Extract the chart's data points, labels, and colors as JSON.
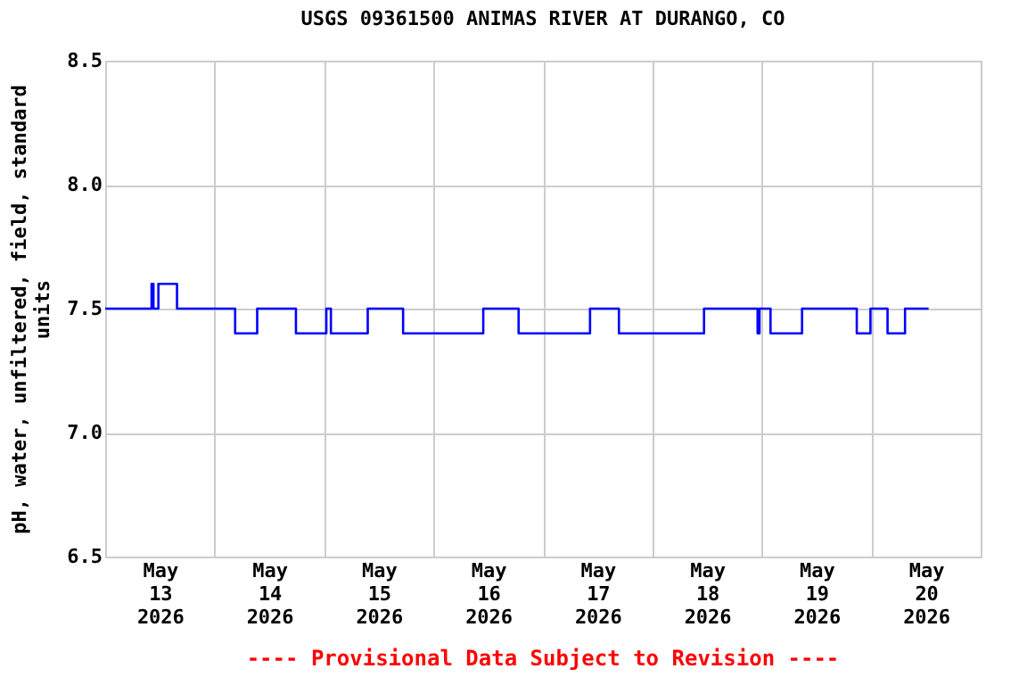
{
  "chart_data": {
    "type": "step",
    "title": "USGS 09361500 ANIMAS RIVER AT DURANGO, CO",
    "ylabel": "pH, water, unfiltered, field, standard units",
    "annotations": [
      "---- Provisional Data Subject to Revision ----"
    ],
    "x": [
      "2026-05-13T00:00",
      "2026-05-13T10:10",
      "2026-05-13T10:35",
      "2026-05-13T11:40",
      "2026-05-13T15:45",
      "2026-05-14T04:30",
      "2026-05-14T09:20",
      "2026-05-14T17:50",
      "2026-05-15T00:30",
      "2026-05-15T01:30",
      "2026-05-15T09:35",
      "2026-05-15T17:20",
      "2026-05-16T10:55",
      "2026-05-16T18:40",
      "2026-05-17T10:20",
      "2026-05-17T16:40",
      "2026-05-18T11:20",
      "2026-05-18T23:05",
      "2026-05-18T23:30",
      "2026-05-19T01:55",
      "2026-05-19T08:50",
      "2026-05-19T20:50",
      "2026-05-19T23:50",
      "2026-05-20T03:35",
      "2026-05-20T07:25",
      "2026-05-20T12:35"
    ],
    "series": [
      {
        "color": "#0000ff",
        "values": [
          7.5,
          7.6,
          7.5,
          7.6,
          7.5,
          7.4,
          7.5,
          7.4,
          7.5,
          7.4,
          7.5,
          7.4,
          7.5,
          7.4,
          7.5,
          7.4,
          7.5,
          7.4,
          7.5,
          7.4,
          7.5,
          7.4,
          7.5,
          7.4,
          7.5,
          7.5
        ]
      }
    ],
    "xlim": [
      "2026-05-13T00:00",
      "2026-05-21T00:00"
    ],
    "xticks": [
      {
        "value": "2026-05-13T00:00",
        "label": null
      },
      {
        "value": "2026-05-13T12:00",
        "label": "May\n13\n2026"
      },
      {
        "value": "2026-05-14T00:00",
        "label": null
      },
      {
        "value": "2026-05-14T12:00",
        "label": "May\n14\n2026"
      },
      {
        "value": "2026-05-15T00:00",
        "label": null
      },
      {
        "value": "2026-05-15T12:00",
        "label": "May\n15\n2026"
      },
      {
        "value": "2026-05-16T00:00",
        "label": null
      },
      {
        "value": "2026-05-16T12:00",
        "label": "May\n16\n2026"
      },
      {
        "value": "2026-05-17T00:00",
        "label": null
      },
      {
        "value": "2026-05-17T12:00",
        "label": "May\n17\n2026"
      },
      {
        "value": "2026-05-18T00:00",
        "label": null
      },
      {
        "value": "2026-05-18T12:00",
        "label": "May\n18\n2026"
      },
      {
        "value": "2026-05-19T00:00",
        "label": null
      },
      {
        "value": "2026-05-19T12:00",
        "label": "May\n19\n2026"
      },
      {
        "value": "2026-05-20T00:00",
        "label": null
      },
      {
        "value": "2026-05-20T12:00",
        "label": "May\n20\n2026"
      },
      {
        "value": "2026-05-21T00:00",
        "label": null
      }
    ],
    "ylim": [
      6.5,
      8.5
    ],
    "yticks": [
      {
        "value": 6.5,
        "label": "6.5"
      },
      {
        "value": 7.0,
        "label": "7.0"
      },
      {
        "value": 7.5,
        "label": "7.5"
      },
      {
        "value": 8.0,
        "label": "8.0"
      },
      {
        "value": 8.5,
        "label": "8.5"
      }
    ],
    "grid": true,
    "marker": "none",
    "line_style": "solid"
  }
}
